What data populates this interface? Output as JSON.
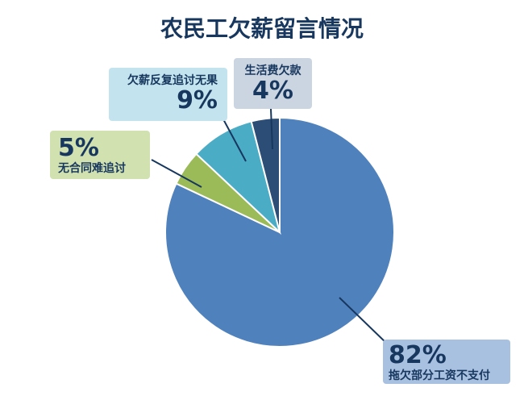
{
  "chart_data": {
    "type": "pie",
    "title": "农民工欠薪留言情况",
    "start_angle": "12 o'clock",
    "direction": "clockwise",
    "slices": [
      {
        "label": "拖欠部分工资不支付",
        "value": 82,
        "display": "82%",
        "color": "#4f81bd",
        "label_bg": "#a9c1e0"
      },
      {
        "label": "无合同难追讨",
        "value": 5,
        "display": "5%",
        "color": "#9bbb59",
        "label_bg": "#d1e1b0"
      },
      {
        "label": "欠薪反复追讨无果",
        "value": 9,
        "display": "9%",
        "color": "#4bacc6",
        "label_bg": "#c3e4ee"
      },
      {
        "label": "生活费欠款",
        "value": 4,
        "display": "4%",
        "color": "#2c4d75",
        "label_bg": "#cbd5e1"
      }
    ]
  }
}
